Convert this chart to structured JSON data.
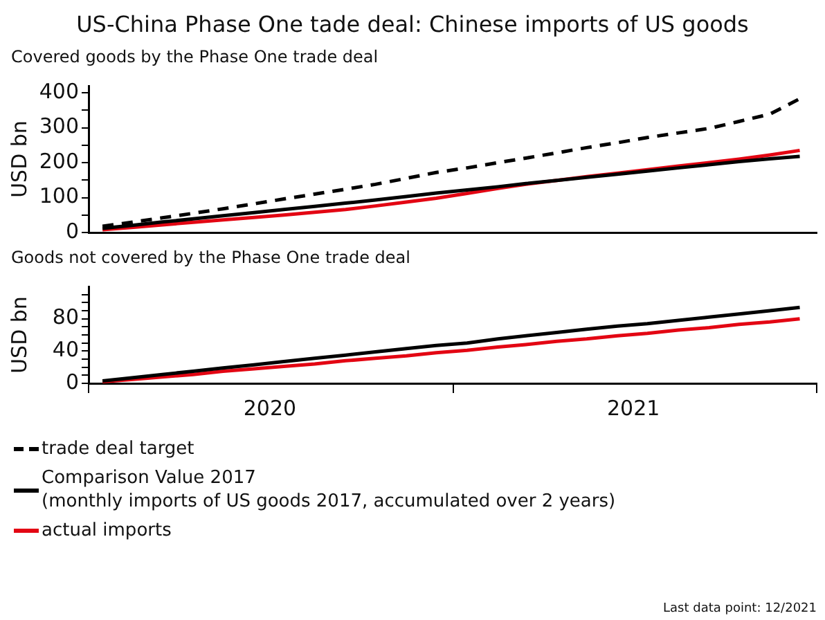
{
  "chart_data": [
    {
      "type": "line",
      "title": "US-China Phase One tade deal: Chinese imports of US goods",
      "subtitle": "Covered goods by the Phase One trade deal",
      "ylabel": "USD bn",
      "legend": "bottom",
      "marker": "none",
      "tick_labels": "y",
      "x": [
        "2020-01-15",
        "2020-02-15",
        "2020-03-15",
        "2020-04-15",
        "2020-05-15",
        "2020-06-15",
        "2020-07-15",
        "2020-08-15",
        "2020-09-15",
        "2020-10-15",
        "2020-11-15",
        "2020-12-15",
        "2021-01-15",
        "2021-02-15",
        "2021-03-15",
        "2021-04-15",
        "2021-05-15",
        "2021-06-15",
        "2021-07-15",
        "2021-08-15",
        "2021-09-15",
        "2021-10-15",
        "2021-11-15",
        "2021-12-15"
      ],
      "xlim": [
        "2020-01-01",
        "2022-01-01"
      ],
      "ylim": [
        0,
        420
      ],
      "yticks": [
        0,
        {
          "value": 50,
          "label": null
        },
        100,
        {
          "value": 150,
          "label": null
        },
        200,
        {
          "value": 250,
          "label": null
        },
        300,
        {
          "value": 350,
          "label": null
        },
        400
      ],
      "series": [
        {
          "name": "trade deal target",
          "color": "#000000",
          "line_style": "dashed",
          "values": [
            18,
            30,
            42,
            55,
            68,
            82,
            96,
            110,
            124,
            138,
            155,
            172,
            185,
            200,
            213,
            228,
            243,
            257,
            272,
            285,
            298,
            318,
            339,
            383
          ]
        },
        {
          "name": "Comparison Value 2017\n(monthly imports of US goods 2017, accumulated over 2 years)",
          "color": "#000000",
          "line_style": "solid",
          "values": [
            12,
            21,
            30,
            39,
            48,
            57,
            66,
            75,
            84,
            93,
            103,
            113,
            122,
            131,
            140,
            149,
            158,
            167,
            176,
            185,
            194,
            203,
            211,
            218
          ]
        },
        {
          "name": "actual imports",
          "color": "#e30613",
          "line_style": "solid",
          "values": [
            8,
            15,
            22,
            29,
            36,
            43,
            50,
            58,
            66,
            76,
            87,
            98,
            112,
            126,
            138,
            149,
            160,
            170,
            180,
            190,
            200,
            210,
            222,
            235
          ]
        }
      ]
    },
    {
      "type": "line",
      "title": "Goods not covered by the Phase One trade deal",
      "ylabel": "USD bn",
      "marker": "none",
      "x": [
        "2020-01-15",
        "2020-02-15",
        "2020-03-15",
        "2020-04-15",
        "2020-05-15",
        "2020-06-15",
        "2020-07-15",
        "2020-08-15",
        "2020-09-15",
        "2020-10-15",
        "2020-11-15",
        "2020-12-15",
        "2021-01-15",
        "2021-02-15",
        "2021-03-15",
        "2021-04-15",
        "2021-05-15",
        "2021-06-15",
        "2021-07-15",
        "2021-08-15",
        "2021-09-15",
        "2021-10-15",
        "2021-11-15",
        "2021-12-15"
      ],
      "xlim": [
        "2020-01-01",
        "2022-01-01"
      ],
      "xticks": [
        {
          "value": "2020-01-01",
          "label": null
        },
        {
          "value": "2020-07-01",
          "label": "2020"
        },
        {
          "value": "2021-01-01",
          "label": null
        },
        {
          "value": "2021-07-01",
          "label": "2021"
        },
        {
          "value": "2022-01-01",
          "label": null
        }
      ],
      "ylim": [
        0,
        120
      ],
      "yticks": [
        0,
        {
          "value": 10,
          "label": null
        },
        {
          "value": 20,
          "label": null
        },
        {
          "value": 30,
          "label": null
        },
        40,
        {
          "value": 50,
          "label": null
        },
        {
          "value": 60,
          "label": null
        },
        {
          "value": 70,
          "label": null
        },
        80,
        {
          "value": 90,
          "label": null
        },
        {
          "value": 100,
          "label": null
        },
        {
          "value": 110,
          "label": null
        }
      ],
      "annotations": [
        "Last data point: 12/2021"
      ],
      "series": [
        {
          "color": "#000000",
          "line_style": "solid",
          "values": [
            3,
            7,
            11,
            15,
            19,
            23,
            27,
            31,
            35,
            39,
            43,
            47,
            50,
            55,
            59,
            63,
            67,
            71,
            74,
            78,
            82,
            86,
            90,
            94
          ]
        },
        {
          "color": "#e30613",
          "line_style": "solid",
          "values": [
            2,
            5,
            8,
            11,
            15,
            18,
            21,
            24,
            28,
            31,
            34,
            38,
            41,
            45,
            48,
            52,
            55,
            59,
            62,
            66,
            69,
            73,
            76,
            80
          ]
        }
      ]
    }
  ]
}
